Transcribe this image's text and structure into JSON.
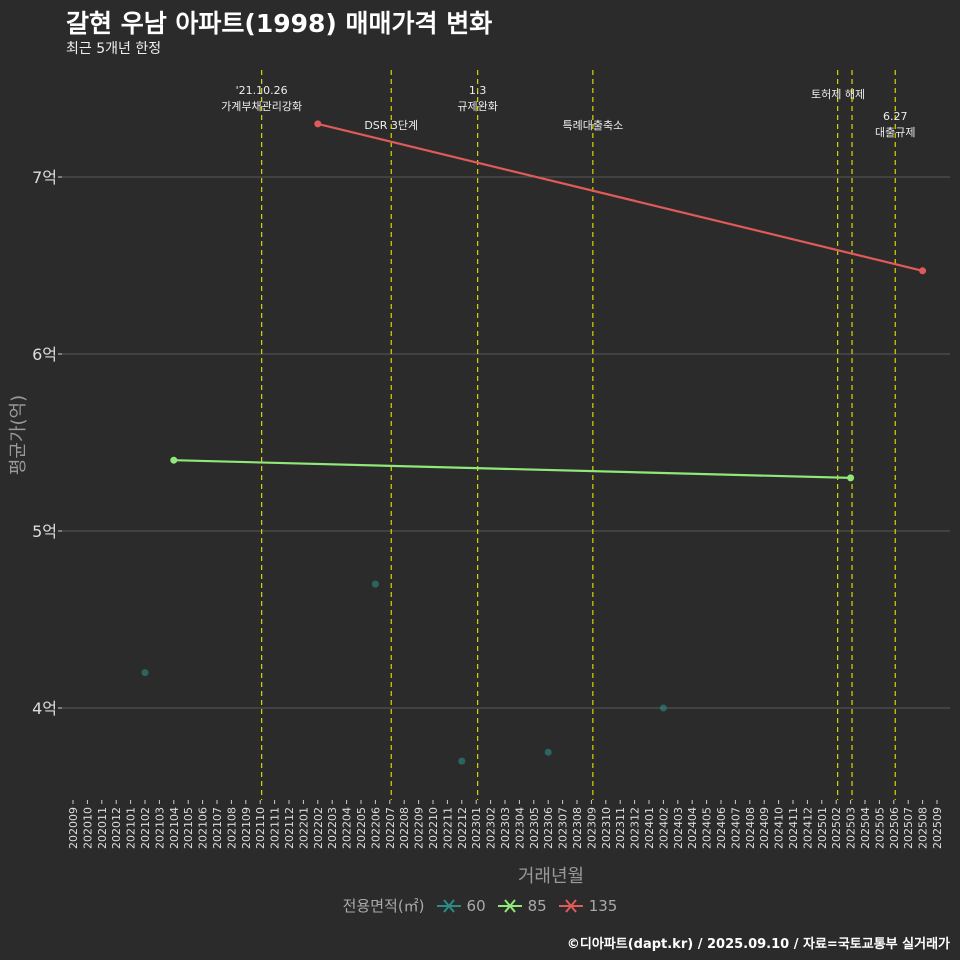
{
  "header": {
    "title": "갈현 우남 아파트(1998) 매매가격 변화",
    "subtitle": "최근 5개년 한정"
  },
  "caption": "©디아파트(dapt.kr) / 2025.09.10 / 자료=국토교통부 실거래가",
  "colors": {
    "background": "#2b2b2b",
    "grid": "#5a5a5a",
    "policy_line": "#d8d800",
    "s60": "#2a8c84",
    "s85": "#90e878",
    "s135": "#e05a5a"
  },
  "chart_data": {
    "type": "line",
    "title": "갈현 우남 아파트(1998) 매매가격 변화",
    "xlabel": "거래년월",
    "ylabel": "평균가(억)",
    "ylim": [
      3.48,
      7.6
    ],
    "yticks": [
      {
        "value": 4,
        "label": "4억"
      },
      {
        "value": 5,
        "label": "5억"
      },
      {
        "value": 6,
        "label": "6억"
      },
      {
        "value": 7,
        "label": "7억"
      }
    ],
    "x_categories": [
      "202009",
      "202010",
      "202011",
      "202012",
      "202101",
      "202102",
      "202103",
      "202104",
      "202105",
      "202106",
      "202107",
      "202108",
      "202109",
      "202110",
      "202111",
      "202112",
      "202201",
      "202202",
      "202203",
      "202204",
      "202205",
      "202206",
      "202207",
      "202208",
      "202209",
      "202210",
      "202211",
      "202212",
      "202301",
      "202302",
      "202303",
      "202304",
      "202305",
      "202306",
      "202307",
      "202308",
      "202309",
      "202310",
      "202311",
      "202312",
      "202401",
      "202402",
      "202403",
      "202404",
      "202405",
      "202406",
      "202407",
      "202408",
      "202409",
      "202410",
      "202411",
      "202412",
      "202501",
      "202502",
      "202503",
      "202504",
      "202505",
      "202506",
      "202507",
      "202508",
      "202509"
    ],
    "legend": {
      "title": "전용면적(㎡)",
      "position": "bottom"
    },
    "series": [
      {
        "name": "60",
        "color": "#2a8c84",
        "points": [
          {
            "x": "202102",
            "y": 4.2
          },
          {
            "x": "202206",
            "y": 4.7
          },
          {
            "x": "202212",
            "y": 3.7
          },
          {
            "x": "202306",
            "y": 3.75
          },
          {
            "x": "202402",
            "y": 4.0
          }
        ],
        "connected": false
      },
      {
        "name": "85",
        "color": "#90e878",
        "points": [
          {
            "x": "202104",
            "y": 5.4
          },
          {
            "x": "202503",
            "y": 5.3
          }
        ],
        "connected": true
      },
      {
        "name": "135",
        "color": "#e05a5a",
        "points": [
          {
            "x": "202202",
            "y": 7.3
          },
          {
            "x": "202508",
            "y": 6.47
          }
        ],
        "connected": true
      }
    ],
    "annotations": [
      {
        "x": 13.1,
        "lines": [
          "'21.10.26",
          "가계부채관리강화"
        ],
        "row": 0
      },
      {
        "x": 22.1,
        "lines": [
          "DSR 3단계"
        ],
        "row": 2
      },
      {
        "x": 28.1,
        "lines": [
          "1.3",
          "규제완화"
        ],
        "row": 0
      },
      {
        "x": 36.1,
        "lines": [
          "특례대출축소"
        ],
        "row": 2
      },
      {
        "x": 53.1,
        "lines": [],
        "row": 1
      },
      {
        "x": 54.1,
        "lines": [
          "토허제 해제"
        ],
        "row": 1
      },
      {
        "x": 57.1,
        "lines": [
          "6.27",
          "대출규제"
        ],
        "row": 3
      }
    ]
  }
}
